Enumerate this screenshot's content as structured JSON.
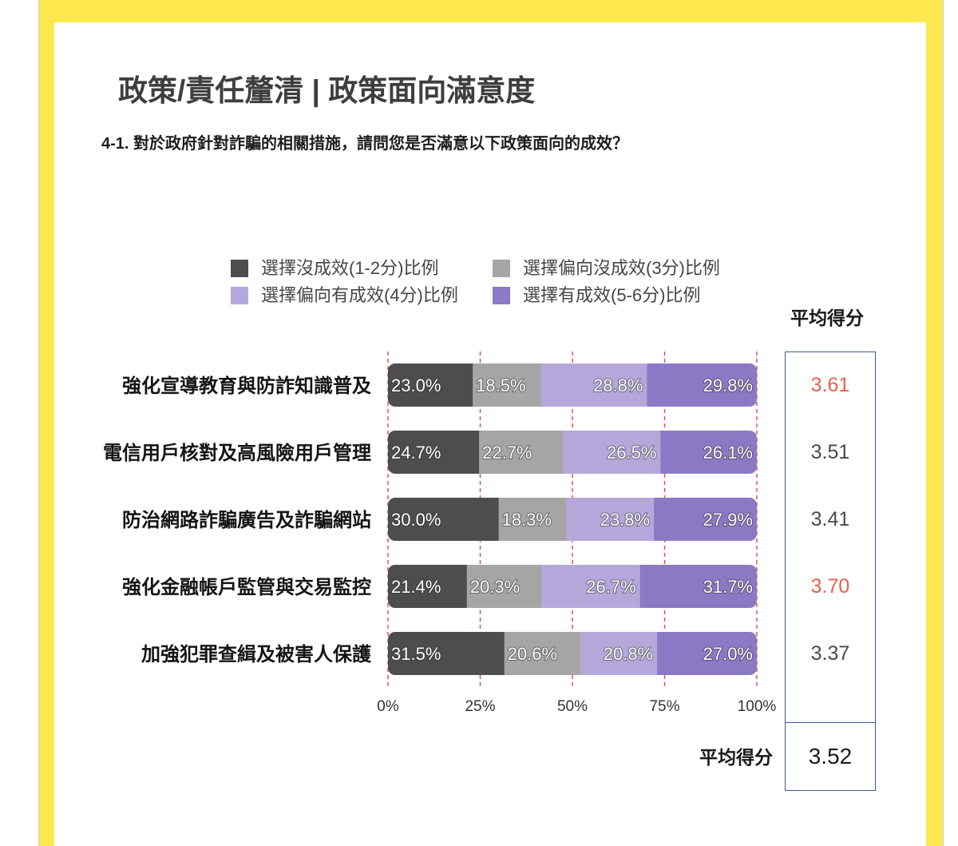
{
  "slide": {
    "title": "政策/責任釐清 | 政策面向滿意度",
    "question": "4-1. 對於政府針對詐騙的相關措施，請問您是否滿意以下政策面向的成效？"
  },
  "colors": {
    "frame": "#FCE84D",
    "gridline": "#E04B43",
    "score_highlight": "#E8604C",
    "score_default": "#4A4A4A",
    "score_box_border": "#3C5A8E"
  },
  "chart_data": {
    "type": "bar",
    "orientation": "horizontal",
    "stacked": true,
    "categories": [
      "強化宣導教育與防詐知識普及",
      "電信用戶核對及高風險用戶管理",
      "防治網路詐騙廣告及詐騙網站",
      "強化金融帳戶監管與交易監控",
      "加強犯罪查緝及被害人保護"
    ],
    "series": [
      {
        "name": "選擇沒成效(1-2分)比例",
        "color": "#4D4D4D",
        "values": [
          23.0,
          24.7,
          30.0,
          21.4,
          31.5
        ]
      },
      {
        "name": "選擇偏向沒成效(3分)比例",
        "color": "#A5A5A5",
        "values": [
          18.5,
          22.7,
          18.3,
          20.3,
          20.6
        ]
      },
      {
        "name": "選擇偏向有成效(4分)比例",
        "color": "#B4A8DA",
        "values": [
          28.8,
          26.5,
          23.8,
          26.7,
          20.8
        ]
      },
      {
        "name": "選擇有成效(5-6分)比例",
        "color": "#8B79C5",
        "values": [
          29.8,
          26.1,
          27.9,
          31.7,
          27.0
        ]
      }
    ],
    "xlim": [
      0,
      100
    ],
    "xticks": [
      0,
      25,
      50,
      75,
      100
    ],
    "xtick_labels": [
      "0%",
      "25%",
      "50%",
      "75%",
      "100%"
    ],
    "grid": true,
    "legend_position": "top"
  },
  "average_scores": {
    "header": "平均得分",
    "values": [
      "3.61",
      "3.51",
      "3.41",
      "3.70",
      "3.37"
    ],
    "highlighted": [
      true,
      false,
      false,
      true,
      false
    ],
    "overall_label": "平均得分",
    "overall_value": "3.52"
  }
}
